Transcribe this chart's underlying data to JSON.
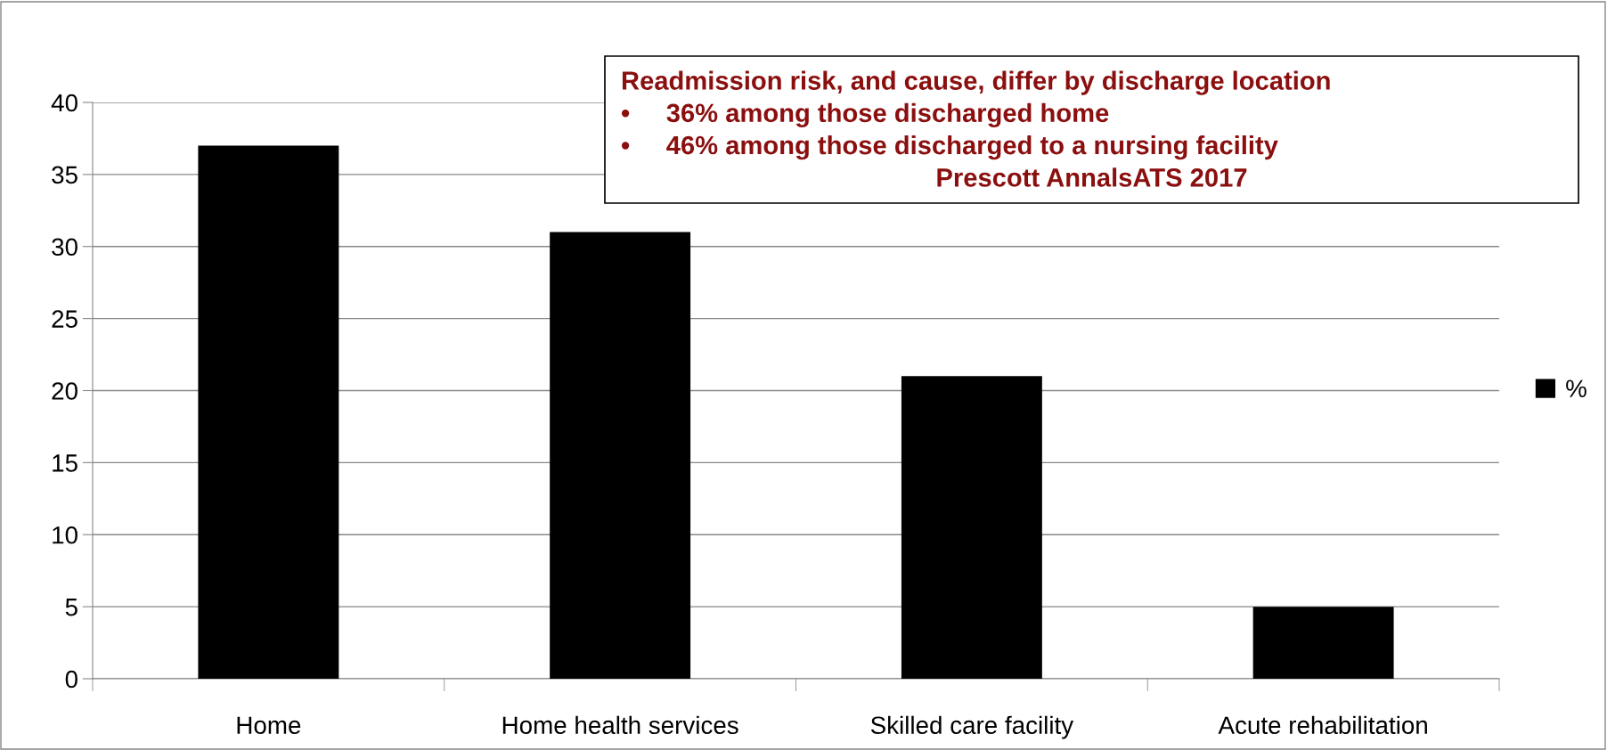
{
  "chart_data": {
    "type": "bar",
    "categories": [
      "Home",
      "Home health services",
      "Skilled care facility",
      "Acute rehabilitation"
    ],
    "series": [
      {
        "name": "%",
        "color": "#000000",
        "values": [
          37,
          31,
          21,
          5
        ]
      }
    ],
    "ylim": [
      0,
      40
    ],
    "yticks": [
      0,
      5,
      10,
      15,
      20,
      25,
      30,
      35,
      40
    ],
    "grid": "y",
    "legend": "right",
    "annotations": [
      "Readmission risk, and cause, differ by discharge location",
      "•     36% among those discharged home",
      "•     46% among those discharged to a nursing facility",
      "Prescott AnnalsATS 2017"
    ]
  }
}
